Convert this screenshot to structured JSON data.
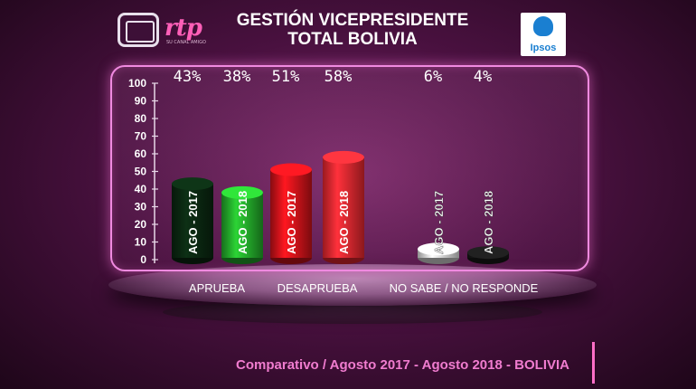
{
  "header": {
    "logo_text": "rtp",
    "logo_subtext": "SU CANAL AMIGO",
    "title_line1": "GESTIÓN VICEPRESIDENTE",
    "title_line2": "TOTAL BOLIVIA",
    "partner_logo_text": "Ipsos"
  },
  "chart_data": {
    "type": "bar",
    "title": "",
    "ylim": [
      0,
      100
    ],
    "yticks": [
      0,
      10,
      20,
      30,
      40,
      50,
      60,
      70,
      80,
      90,
      100
    ],
    "groups": [
      "APRUEBA",
      "DESAPRUEBA",
      "NO SABE / NO RESPONDE"
    ],
    "bars": [
      {
        "group": "APRUEBA",
        "label": "AGO - 2017",
        "value": 43,
        "value_label": "43%",
        "color": "#0b2a12"
      },
      {
        "group": "APRUEBA",
        "label": "AGO - 2018",
        "value": 38,
        "value_label": "38%",
        "color": "#26b82e"
      },
      {
        "group": "DESAPRUEBA",
        "label": "AGO - 2017",
        "value": 51,
        "value_label": "51%",
        "color": "#e0141c"
      },
      {
        "group": "DESAPRUEBA",
        "label": "AGO - 2018",
        "value": 58,
        "value_label": "58%",
        "color": "#ff2b33"
      },
      {
        "group": "NO SABE / NO RESPONDE",
        "label": "AGO - 2017",
        "value": 6,
        "value_label": "6%",
        "color": "#f2f2f2"
      },
      {
        "group": "NO SABE / NO RESPONDE",
        "label": "AGO - 2018",
        "value": 4,
        "value_label": "4%",
        "color": "#1a1a1a"
      }
    ]
  },
  "footer": {
    "caption": "Comparativo / Agosto 2017 - Agosto 2018 - BOLIVIA"
  }
}
